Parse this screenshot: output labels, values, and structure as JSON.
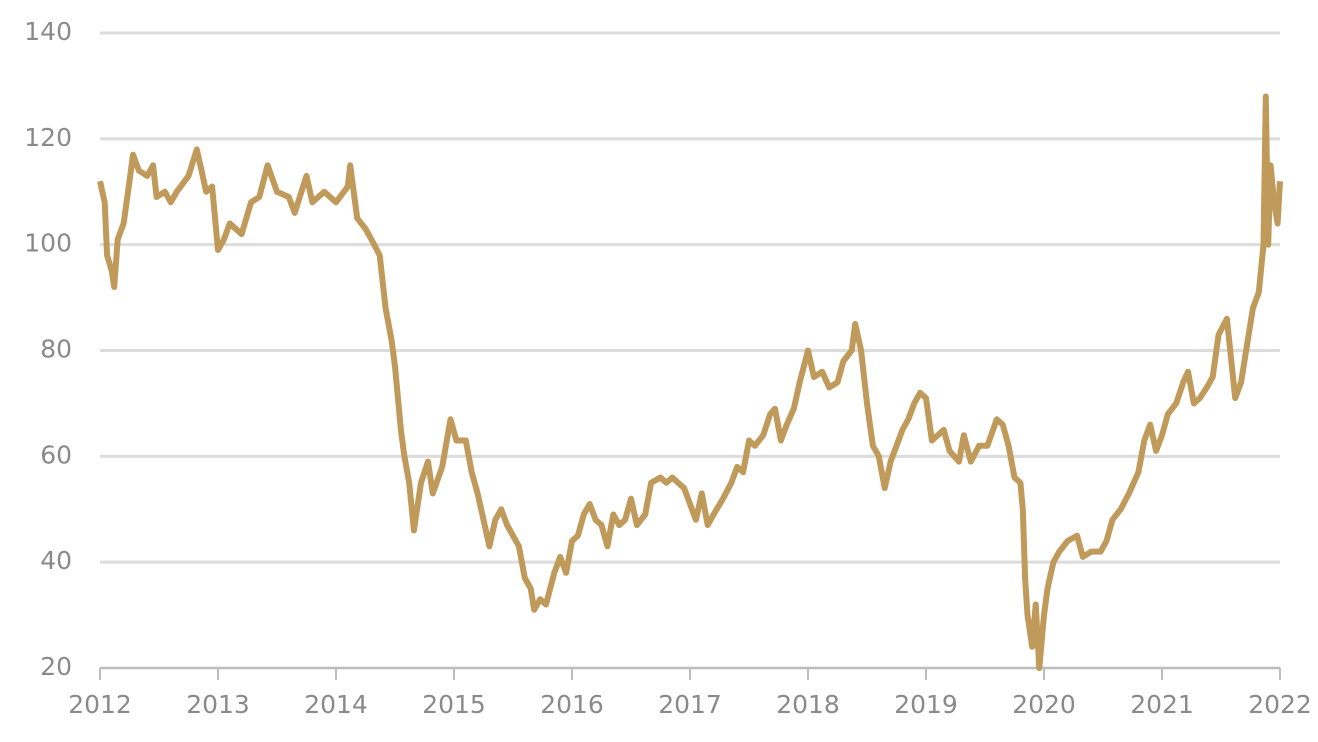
{
  "chart_data": {
    "type": "line",
    "x": [
      2012.0,
      2012.04,
      2012.06,
      2012.1,
      2012.12,
      2012.15,
      2012.2,
      2012.25,
      2012.28,
      2012.33,
      2012.4,
      2012.45,
      2012.48,
      2012.55,
      2012.6,
      2012.65,
      2012.75,
      2012.82,
      2012.9,
      2012.95,
      2013.0,
      2013.05,
      2013.1,
      2013.2,
      2013.28,
      2013.35,
      2013.42,
      2013.5,
      2013.6,
      2013.65,
      2013.75,
      2013.8,
      2013.9,
      2014.0,
      2014.1,
      2014.12,
      2014.18,
      2014.25,
      2014.3,
      2014.37,
      2014.42,
      2014.47,
      2014.5,
      2014.55,
      2014.58,
      2014.62,
      2014.66,
      2014.72,
      2014.78,
      2014.82,
      2014.9,
      2014.97,
      2015.02,
      2015.1,
      2015.15,
      2015.2,
      2015.25,
      2015.3,
      2015.35,
      2015.4,
      2015.45,
      2015.5,
      2015.55,
      2015.6,
      2015.65,
      2015.68,
      2015.73,
      2015.78,
      2015.85,
      2015.9,
      2015.95,
      2016.0,
      2016.05,
      2016.1,
      2016.15,
      2016.2,
      2016.25,
      2016.3,
      2016.35,
      2016.4,
      2016.45,
      2016.5,
      2016.55,
      2016.62,
      2016.67,
      2016.75,
      2016.8,
      2016.85,
      2016.9,
      2016.95,
      2017.0,
      2017.05,
      2017.1,
      2017.15,
      2017.2,
      2017.28,
      2017.35,
      2017.4,
      2017.45,
      2017.5,
      2017.55,
      2017.62,
      2017.68,
      2017.72,
      2017.77,
      2017.82,
      2017.88,
      2017.93,
      2018.0,
      2018.05,
      2018.12,
      2018.18,
      2018.25,
      2018.3,
      2018.37,
      2018.4,
      2018.45,
      2018.5,
      2018.55,
      2018.6,
      2018.65,
      2018.7,
      2018.75,
      2018.8,
      2018.85,
      2018.9,
      2018.95,
      2019.0,
      2019.05,
      2019.1,
      2019.15,
      2019.2,
      2019.28,
      2019.32,
      2019.38,
      2019.45,
      2019.52,
      2019.6,
      2019.65,
      2019.7,
      2019.75,
      2019.8,
      2019.82,
      2019.84,
      2019.86,
      2019.9,
      2019.93,
      2019.96,
      2020.0,
      2020.03,
      2020.08,
      2020.13,
      2020.2,
      2020.28,
      2020.33,
      2020.4,
      2020.48,
      2020.53,
      2020.58,
      2020.65,
      2020.72,
      2020.8,
      2020.85,
      2020.9,
      2020.95,
      2021.0,
      2021.05,
      2021.12,
      2021.18,
      2021.22,
      2021.27,
      2021.32,
      2021.38,
      2021.43,
      2021.48,
      2021.55,
      2021.62,
      2021.67,
      2021.72,
      2021.77,
      2021.82,
      2021.86,
      2021.88,
      2021.9,
      2021.92,
      2021.95,
      2021.98,
      2022.0
    ],
    "values": [
      112,
      108,
      98,
      95,
      92,
      101,
      104,
      112,
      117,
      114,
      113,
      115,
      109,
      110,
      108,
      110,
      113,
      118,
      110,
      111,
      99,
      101,
      104,
      102,
      108,
      109,
      115,
      110,
      109,
      106,
      113,
      108,
      110,
      108,
      111,
      115,
      105,
      103,
      101,
      98,
      88,
      82,
      77,
      65,
      60,
      55,
      46,
      55,
      59,
      53,
      58,
      67,
      63,
      63,
      57,
      53,
      48,
      43,
      48,
      50,
      47,
      45,
      43,
      37,
      35,
      31,
      33,
      32,
      38,
      41,
      38,
      44,
      45,
      49,
      51,
      48,
      47,
      43,
      49,
      47,
      48,
      52,
      47,
      49,
      55,
      56,
      55,
      56,
      55,
      54,
      51,
      48,
      53,
      47,
      49,
      52,
      55,
      58,
      57,
      63,
      62,
      64,
      68,
      69,
      63,
      66,
      69,
      74,
      80,
      75,
      76,
      73,
      74,
      78,
      80,
      85,
      80,
      70,
      62,
      60,
      54,
      59,
      62,
      65,
      67,
      70,
      72,
      71,
      63,
      64,
      65,
      61,
      59,
      64,
      59,
      62,
      62,
      67,
      66,
      62,
      56,
      55,
      50,
      37,
      30,
      24,
      32,
      20,
      30,
      35,
      40,
      42,
      44,
      45,
      41,
      42,
      42,
      44,
      48,
      50,
      53,
      57,
      63,
      66,
      61,
      64,
      68,
      70,
      74,
      76,
      70,
      71,
      73,
      75,
      83,
      86,
      71,
      74,
      81,
      88,
      91,
      100,
      128,
      100,
      115,
      108,
      104,
      112
    ],
    "color": "#c09a5b",
    "xlim": [
      2012,
      2022
    ],
    "xticks": [
      2012,
      2013,
      2014,
      2015,
      2016,
      2017,
      2018,
      2019,
      2020,
      2021,
      2022
    ],
    "ylim": [
      20,
      140
    ],
    "yticks": [
      20,
      40,
      60,
      80,
      100,
      120,
      140
    ],
    "grid": true
  }
}
